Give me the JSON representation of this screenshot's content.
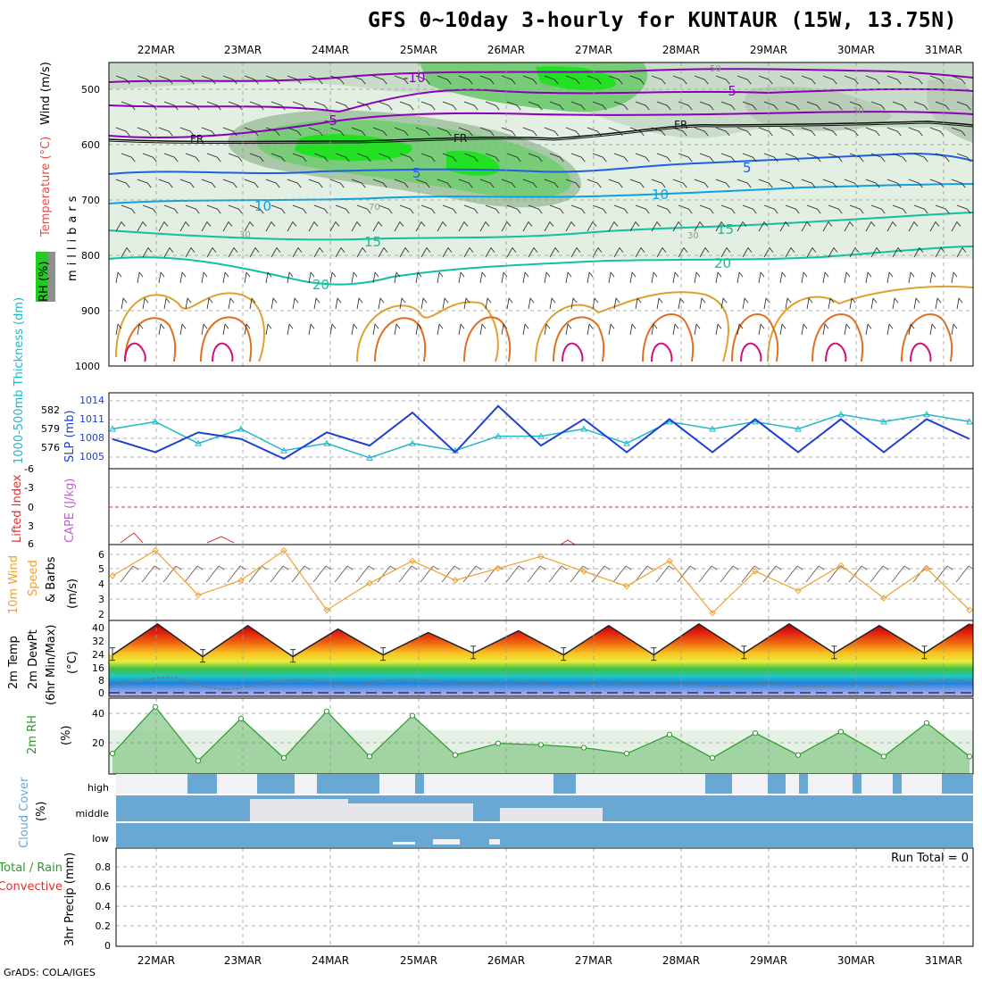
{
  "title": "GFS 0~10day 3-hourly for KUNTAUR (15W, 13.75N)",
  "footer": "GrADS: COLA/IGES",
  "dates": [
    "22MAR",
    "23MAR",
    "24MAR",
    "25MAR",
    "26MAR",
    "27MAR",
    "28MAR",
    "29MAR",
    "30MAR",
    "31MAR"
  ],
  "panels": {
    "upper": {
      "ylabel_rh": "RH (%)",
      "ylabel_temp": "Temperature (°C)",
      "ylabel_wind": "Wind (m/s)",
      "ylabel_unit": "millibars",
      "yticks": [
        "500",
        "600",
        "700",
        "800",
        "900",
        "1000"
      ],
      "contour_labels": [
        "-10",
        "-5",
        "-5",
        "FR",
        "FR",
        "FR",
        "5",
        "5",
        "10",
        "10",
        "15",
        "15",
        "20",
        "20",
        "50",
        "50",
        "50",
        "30",
        "30",
        "30",
        "70"
      ]
    },
    "slp": {
      "ylabel_left": "1000-500mb Thickness (dm)",
      "ylabel_right": "SLP (mb)",
      "left_ticks": [
        "582",
        "579",
        "576"
      ],
      "right_ticks": [
        "1014",
        "1011",
        "1008",
        "1005"
      ]
    },
    "cape": {
      "ylabel_left": "Lifted Index",
      "ylabel_right": "CAPE (J/kg)",
      "left_ticks": [
        "-6",
        "-3",
        "0",
        "3",
        "6"
      ]
    },
    "wind10": {
      "ylabel_1": "10m Wind",
      "ylabel_2": "Speed",
      "ylabel_3": "& Barbs",
      "ylabel_unit": "(m/s)",
      "yticks": [
        "6",
        "5",
        "4",
        "3",
        "2"
      ]
    },
    "temp2m": {
      "ylabel_1": "2m Temp",
      "ylabel_2": "2m DewPt",
      "ylabel_3": "(6hr Min/Max)",
      "ylabel_unit": "(°C)",
      "yticks": [
        "40",
        "32",
        "24",
        "16",
        "8",
        "0"
      ]
    },
    "rh2m": {
      "ylabel": "2m RH",
      "ylabel_unit": "(%)",
      "yticks": [
        "40",
        "20"
      ]
    },
    "cloud": {
      "ylabel": "Cloud Cover",
      "ylabel_unit": "(%)",
      "levels": [
        "high",
        "middle",
        "low"
      ]
    },
    "precip": {
      "ylabel_1": "Total / Rain",
      "ylabel_2": "Convective",
      "ylabel_3": "3hr Precip (mm)",
      "yticks": [
        "0.8",
        "0.6",
        "0.4",
        "0.2",
        "0"
      ],
      "run_total": "Run Total = 0"
    }
  },
  "colors": {
    "temp_contour_dark": "#8a00b8",
    "temp_contour_blue": "#2060e0",
    "temp_contour_cyan": "#10a0e0",
    "temp_contour_teal": "#10c0a0",
    "rh_light": "#d8ecd8",
    "rh_mid": "#70c870",
    "rh_bright": "#20e020",
    "slp_line": "#1f3fd0",
    "thickness_line": "#20b8c8",
    "wind_speed": "#f0a030",
    "rh2m": "#2a9a2a",
    "cloud_blue": "#6aa8d4",
    "cloud_white": "#f2f2f6"
  },
  "chart_data": [
    {
      "type": "line",
      "title": "SLP (mb) and 1000-500mb Thickness (dm)",
      "x": [
        "21MAR21",
        "22MAR00",
        "22MAR12",
        "23MAR00",
        "23MAR12",
        "24MAR00",
        "24MAR12",
        "25MAR00",
        "25MAR12",
        "26MAR00",
        "26MAR12",
        "27MAR00",
        "27MAR12",
        "28MAR00",
        "28MAR12",
        "29MAR00",
        "29MAR12",
        "30MAR00",
        "30MAR12",
        "31MAR00",
        "31MAR12"
      ],
      "series": [
        {
          "name": "SLP (mb)",
          "values": [
            1008,
            1006,
            1009,
            1008,
            1005,
            1009,
            1007,
            1012,
            1006,
            1013,
            1007,
            1011,
            1006,
            1011,
            1006,
            1011,
            1006,
            1011,
            1006,
            1011,
            1008
          ]
        },
        {
          "name": "1000-500mb Thickness (dm)",
          "values": [
            579,
            580,
            577,
            579,
            576,
            577,
            575,
            577,
            576,
            578,
            578,
            579,
            577,
            580,
            579,
            580,
            579,
            581,
            580,
            581,
            580
          ]
        }
      ]
    },
    {
      "type": "line",
      "title": "10m Wind Speed (m/s)",
      "x": [
        "21MAR21",
        "22MAR00",
        "22MAR12",
        "23MAR00",
        "23MAR12",
        "24MAR00",
        "24MAR12",
        "25MAR00",
        "25MAR12",
        "26MAR00",
        "26MAR12",
        "27MAR00",
        "27MAR12",
        "28MAR00",
        "28MAR12",
        "29MAR00",
        "29MAR12",
        "30MAR00",
        "30MAR12",
        "31MAR00",
        "31MAR12"
      ],
      "values": [
        4.5,
        6.2,
        3.2,
        4.2,
        6.2,
        2.2,
        4.0,
        5.5,
        4.2,
        5.0,
        5.8,
        4.8,
        3.8,
        5.5,
        2.0,
        4.8,
        3.5,
        5.2,
        3.0,
        5.0,
        2.2
      ],
      "ylim": [
        2,
        6
      ]
    },
    {
      "type": "area",
      "title": "2m Temp (°C)",
      "x": [
        "22MAR00",
        "22MAR15",
        "23MAR03",
        "23MAR15",
        "24MAR03",
        "24MAR15",
        "25MAR03",
        "25MAR15",
        "26MAR03",
        "26MAR15",
        "27MAR03",
        "27MAR15",
        "28MAR03",
        "28MAR15",
        "29MAR03",
        "29MAR15",
        "30MAR03",
        "30MAR15",
        "31MAR03",
        "31MAR15"
      ],
      "values": [
        22,
        40,
        21,
        39,
        21,
        37,
        22,
        35,
        23,
        36,
        22,
        39,
        22,
        40,
        23,
        40,
        23,
        39,
        23,
        40
      ],
      "ylim": [
        0,
        40
      ]
    },
    {
      "type": "area",
      "title": "2m RH (%)",
      "x": [
        "21MAR21",
        "22MAR00",
        "22MAR12",
        "23MAR00",
        "23MAR12",
        "24MAR00",
        "24MAR12",
        "25MAR00",
        "25MAR12",
        "26MAR00",
        "26MAR12",
        "27MAR00",
        "27MAR12",
        "28MAR00",
        "28MAR12",
        "29MAR00",
        "29MAR12",
        "30MAR00",
        "30MAR12",
        "31MAR00",
        "31MAR12"
      ],
      "values": [
        14,
        46,
        9,
        38,
        11,
        43,
        12,
        40,
        13,
        21,
        20,
        18,
        14,
        27,
        11,
        28,
        13,
        29,
        12,
        35,
        12
      ],
      "ylim": [
        0,
        50
      ]
    }
  ]
}
